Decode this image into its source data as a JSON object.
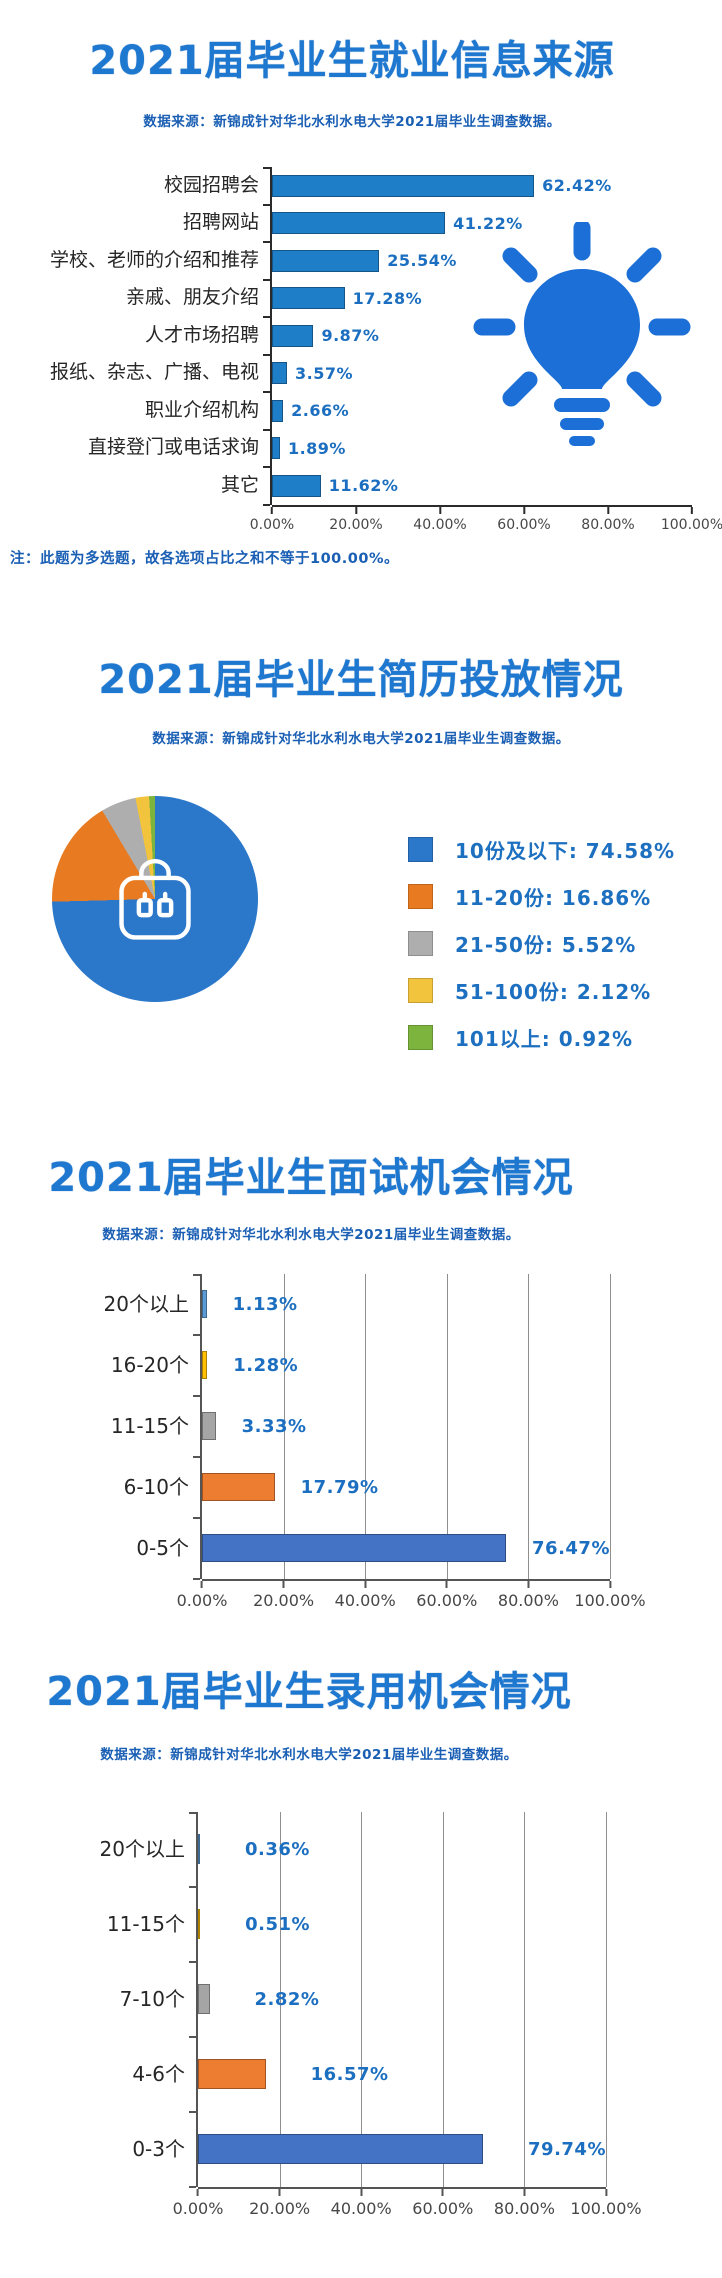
{
  "colors": {
    "title_blue": "#1e78d0",
    "subtitle_blue": "#1a5fb4",
    "value_label_blue": "#1c6fc0",
    "bulb_blue": "#1b6fd6"
  },
  "chart_data": [
    {
      "type": "bar",
      "orientation": "horizontal",
      "title": "2021届毕业生就业信息来源",
      "source": "数据来源：新锦成针对华北水利水电大学2021届毕业生调查数据。",
      "categories": [
        "校园招聘会",
        "招聘网站",
        "学校、老师的介绍和推荐",
        "亲戚、朋友介绍",
        "人才市场招聘",
        "报纸、杂志、广播、电视",
        "职业介绍机构",
        "直接登门或电话求询",
        "其它"
      ],
      "values": [
        62.42,
        41.22,
        25.54,
        17.28,
        9.87,
        3.57,
        2.66,
        1.89,
        11.62
      ],
      "display": [
        "62.42%",
        "41.22%",
        "25.54%",
        "17.28%",
        "9.87%",
        "3.57%",
        "2.66%",
        "1.89%",
        "11.62%"
      ],
      "bar_color": "#1f7ec8",
      "xlim": [
        0,
        100
      ],
      "x_ticks": [
        "0.00%",
        "20.00%",
        "40.00%",
        "60.00%",
        "80.00%",
        "100.00%"
      ],
      "grid": false,
      "note": "注：此题为多选题，故各选项占比之和不等于100.00%。"
    },
    {
      "type": "pie",
      "title": "2021届毕业生简历投放情况",
      "source": "数据来源：新锦成针对华北水利水电大学2021届毕业生调查数据。",
      "legend_position": "right",
      "slices": [
        {
          "label": "10份及以下",
          "value": 74.58,
          "display": "10份及以下: 74.58%",
          "color": "#2b77c9"
        },
        {
          "label": "11-20份",
          "value": 16.86,
          "display": "11-20份: 16.86%",
          "color": "#e87b22"
        },
        {
          "label": "21-50份",
          "value": 5.52,
          "display": "21-50份: 5.52%",
          "color": "#aeaeae"
        },
        {
          "label": "51-100份",
          "value": 2.12,
          "display": "51-100份: 2.12%",
          "color": "#f2c43e"
        },
        {
          "label": "101以上",
          "value": 0.92,
          "display": "101以上: 0.92%",
          "color": "#7db43e"
        }
      ]
    },
    {
      "type": "bar",
      "orientation": "horizontal",
      "title": "2021届毕业生面试机会情况",
      "source": "数据来源：新锦成针对华北水利水电大学2021届毕业生调查数据。",
      "categories": [
        "20个以上",
        "16-20个",
        "11-15个",
        "6-10个",
        "0-5个"
      ],
      "values": [
        1.13,
        1.28,
        3.33,
        17.79,
        76.47
      ],
      "display": [
        "1.13%",
        "1.28%",
        "3.33%",
        "17.79%",
        "76.47%"
      ],
      "bar_colors": [
        "#5b9bd5",
        "#ffc000",
        "#a5a5a5",
        "#ed7d31",
        "#4472c4"
      ],
      "xlim": [
        0,
        100
      ],
      "x_ticks": [
        "0.00%",
        "20.00%",
        "40.00%",
        "60.00%",
        "80.00%",
        "100.00%"
      ],
      "grid": true
    },
    {
      "type": "bar",
      "orientation": "horizontal",
      "title": "2021届毕业生录用机会情况",
      "source": "数据来源：新锦成针对华北水利水电大学2021届毕业生调查数据。",
      "categories": [
        "20个以上",
        "11-15个",
        "7-10个",
        "4-6个",
        "0-3个"
      ],
      "values": [
        0.36,
        0.51,
        2.82,
        16.57,
        79.74
      ],
      "display": [
        "0.36%",
        "0.51%",
        "2.82%",
        "16.57%",
        "79.74%"
      ],
      "bar_colors": [
        "#5b9bd5",
        "#ffc000",
        "#a5a5a5",
        "#ed7d31",
        "#4472c4"
      ],
      "xlim": [
        0,
        100
      ],
      "x_ticks": [
        "0.00%",
        "20.00%",
        "40.00%",
        "60.00%",
        "80.00%",
        "100.00%"
      ],
      "grid": true
    }
  ]
}
